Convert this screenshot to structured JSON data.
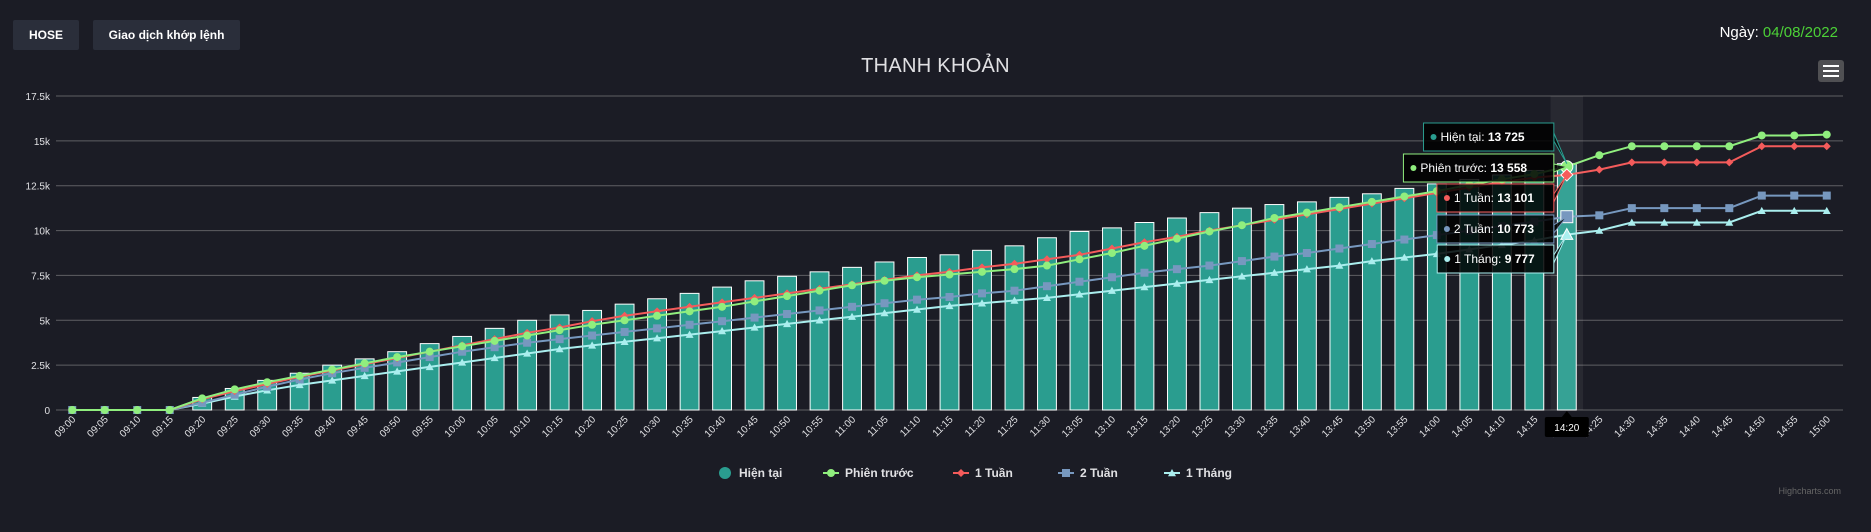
{
  "header": {
    "exchange_tab": "HOSE",
    "type_tab": "Giao dịch khớp lệnh",
    "date_label": "Ngày:",
    "date_value": "04/08/2022"
  },
  "credits": "Highcharts.com",
  "colors": {
    "background": "#1b1c25",
    "bars": "#2a9d8f",
    "phien_truoc": "#90ee7e",
    "tuan1": "#f45b5b",
    "tuan2": "#7798bf",
    "thang1": "#aaeeee",
    "grid": "#707073",
    "date_accent": "#4cd137"
  },
  "chart_data": {
    "type": "bar",
    "title": "THANH KHOẢN",
    "xlabel": "",
    "ylabel": "",
    "ylim": [
      0,
      17500
    ],
    "yticks": [
      0,
      2500,
      5000,
      7500,
      10000,
      12500,
      15000,
      17500
    ],
    "ytick_labels": [
      "0",
      "2.5k",
      "5k",
      "7.5k",
      "10k",
      "12.5k",
      "15k",
      "17.5k"
    ],
    "grid": true,
    "legend_position": "bottom-center",
    "categories": [
      "09:00",
      "09:05",
      "09:10",
      "09:15",
      "09:20",
      "09:25",
      "09:30",
      "09:35",
      "09:40",
      "09:45",
      "09:50",
      "09:55",
      "10:00",
      "10:05",
      "10:10",
      "10:15",
      "10:20",
      "10:25",
      "10:30",
      "10:35",
      "10:40",
      "10:45",
      "10:50",
      "10:55",
      "11:00",
      "11:05",
      "11:10",
      "11:15",
      "11:20",
      "11:25",
      "11:30",
      "13:05",
      "13:10",
      "13:15",
      "13:20",
      "13:25",
      "13:30",
      "13:35",
      "13:40",
      "13:45",
      "13:50",
      "13:55",
      "14:00",
      "14:05",
      "14:10",
      "14:15",
      "14:20",
      "14:25",
      "14:30",
      "14:35",
      "14:40",
      "14:45",
      "14:50",
      "14:55",
      "15:00"
    ],
    "series": [
      {
        "name": "Hiện tại",
        "kind": "column",
        "values": [
          0,
          0,
          0,
          0,
          700,
          1200,
          1650,
          2050,
          2500,
          2850,
          3250,
          3700,
          4100,
          4550,
          5000,
          5300,
          5550,
          5900,
          6200,
          6500,
          6850,
          7200,
          7450,
          7700,
          7950,
          8250,
          8500,
          8650,
          8900,
          9150,
          9600,
          9950,
          10150,
          10450,
          10700,
          11000,
          11250,
          11450,
          11600,
          11850,
          12050,
          12350,
          12600,
          12850,
          13100,
          13350,
          13725,
          null,
          null,
          null,
          null,
          null,
          null,
          null,
          null
        ]
      },
      {
        "name": "Phiên trước",
        "kind": "line",
        "values": [
          0,
          0,
          0,
          0,
          650,
          1150,
          1550,
          1900,
          2250,
          2600,
          2950,
          3250,
          3550,
          3850,
          4150,
          4450,
          4750,
          5000,
          5250,
          5500,
          5750,
          6050,
          6350,
          6650,
          6950,
          7200,
          7400,
          7550,
          7700,
          7850,
          8050,
          8400,
          8750,
          9150,
          9550,
          9950,
          10300,
          10700,
          11000,
          11300,
          11600,
          11900,
          12200,
          12550,
          12850,
          13150,
          13558,
          14200,
          14700,
          14700,
          14700,
          14700,
          15300,
          15300,
          15350
        ]
      },
      {
        "name": "1 Tuần",
        "kind": "line",
        "values": [
          0,
          0,
          0,
          0,
          600,
          1050,
          1450,
          1850,
          2200,
          2550,
          2900,
          3250,
          3600,
          3950,
          4300,
          4600,
          4950,
          5250,
          5500,
          5750,
          6000,
          6250,
          6500,
          6750,
          7000,
          7250,
          7500,
          7700,
          7950,
          8150,
          8400,
          8650,
          9000,
          9350,
          9650,
          10000,
          10300,
          10600,
          10900,
          11200,
          11500,
          11800,
          12100,
          12400,
          12700,
          12950,
          13101,
          13400,
          13800,
          13800,
          13800,
          13800,
          14700,
          14700,
          14700
        ]
      },
      {
        "name": "2 Tuần",
        "kind": "line",
        "values": [
          0,
          0,
          0,
          0,
          400,
          850,
          1300,
          1700,
          2050,
          2350,
          2650,
          2950,
          3250,
          3500,
          3750,
          3950,
          4150,
          4350,
          4550,
          4750,
          4950,
          5150,
          5350,
          5550,
          5750,
          5950,
          6150,
          6300,
          6500,
          6650,
          6900,
          7150,
          7400,
          7650,
          7850,
          8050,
          8300,
          8550,
          8750,
          9000,
          9250,
          9500,
          9750,
          10000,
          10250,
          10500,
          10773,
          10850,
          11250,
          11250,
          11250,
          11250,
          11950,
          11950,
          11950
        ]
      },
      {
        "name": "1 Tháng",
        "kind": "line",
        "values": [
          0,
          0,
          0,
          0,
          350,
          750,
          1100,
          1400,
          1650,
          1900,
          2150,
          2400,
          2650,
          2900,
          3150,
          3400,
          3600,
          3800,
          4000,
          4200,
          4400,
          4600,
          4800,
          5000,
          5200,
          5400,
          5600,
          5800,
          5950,
          6100,
          6250,
          6450,
          6650,
          6850,
          7050,
          7250,
          7450,
          7650,
          7850,
          8050,
          8300,
          8500,
          8700,
          8950,
          9200,
          9450,
          9777,
          10000,
          10450,
          10450,
          10450,
          10450,
          11100,
          11100,
          11100
        ]
      }
    ],
    "tooltip": {
      "time": "14:20",
      "items": [
        {
          "series": "Hiện tại",
          "label": "Hiện tại:",
          "value": "13 725"
        },
        {
          "series": "Phiên trước",
          "label": "Phiên trước:",
          "value": "13 558"
        },
        {
          "series": "1 Tuần",
          "label": "1 Tuần:",
          "value": "13 101"
        },
        {
          "series": "2 Tuần",
          "label": "2 Tuần:",
          "value": "10 773"
        },
        {
          "series": "1 Tháng",
          "label": "1 Tháng:",
          "value": "9 777"
        }
      ]
    }
  }
}
